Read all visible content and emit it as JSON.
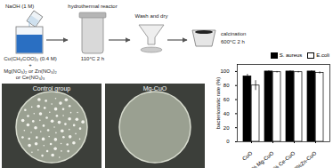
{
  "diagram": {
    "reagent": "NaOH (1 M)",
    "solution": [
      "Cu(CH₃COO)₂ (0.4 M)",
      "+",
      "Mg(NO₃)₂ or Zn(NO₃)₂",
      "or Ce(NO₃)₃"
    ],
    "reactor": {
      "label": "hydrothermal reactor",
      "condition": "110°C 2 h"
    },
    "wash": "Wash and dry",
    "calcination": {
      "label": "calcination",
      "condition": "600°C 2 h"
    }
  },
  "photos": [
    "Control group",
    "Mg-CuO"
  ],
  "chart_data": {
    "type": "bar",
    "y_label": "bacteriostatic rate (%)",
    "categories": [
      "CuO",
      "5% Mg-CuO",
      "5% Ce-CuO",
      "3%Zn-CuO"
    ],
    "series": [
      {
        "name": "S. aureus",
        "color": "#000000",
        "values": [
          93,
          100,
          100,
          100
        ],
        "errors": [
          3,
          1,
          1,
          1
        ]
      },
      {
        "name": "E.coli",
        "color": "#ffffff",
        "values": [
          80,
          99,
          99,
          98
        ],
        "errors": [
          7,
          1,
          1,
          1.5
        ]
      }
    ],
    "ylim": [
      0,
      110
    ],
    "yticks": [
      0,
      20,
      40,
      60,
      80,
      100
    ],
    "grid": false,
    "legend": "top-right"
  }
}
